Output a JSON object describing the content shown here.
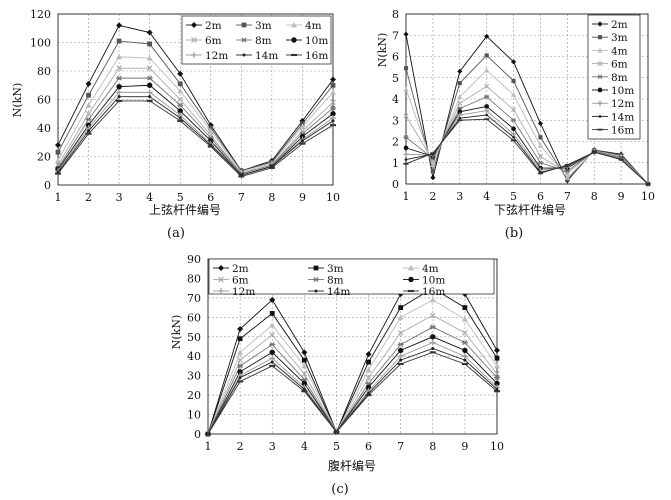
{
  "chart_data": [
    {
      "type": "line",
      "panel_label": "(a)",
      "xlabel": "上弦杆件编号",
      "ylabel": "N(kN)",
      "x": [
        1,
        2,
        3,
        4,
        5,
        6,
        7,
        8,
        9,
        10
      ],
      "xlim": [
        1,
        10
      ],
      "ylim": [
        0,
        120
      ],
      "yticks": [
        0,
        20,
        40,
        60,
        80,
        100,
        120
      ],
      "grid": true,
      "legend_position": "top-right",
      "legend_columns": 3,
      "series": [
        {
          "name": "2m",
          "marker": "diamond",
          "color": "#111111",
          "values": [
            28,
            71,
            112,
            107,
            78,
            42,
            10,
            17,
            45,
            74
          ]
        },
        {
          "name": "3m",
          "marker": "square",
          "color": "#555555",
          "values": [
            23,
            63,
            101,
            99,
            71,
            40,
            10,
            16,
            43,
            70
          ]
        },
        {
          "name": "4m",
          "marker": "triangle",
          "color": "#bbbbbb",
          "values": [
            17,
            56,
            90,
            89,
            66,
            38,
            9,
            15,
            41,
            65
          ]
        },
        {
          "name": "6m",
          "marker": "x",
          "color": "#aaaaaa",
          "values": [
            14,
            50,
            82,
            82,
            60,
            35,
            8,
            14,
            38,
            58
          ]
        },
        {
          "name": "8m",
          "marker": "star",
          "color": "#777777",
          "values": [
            12,
            46,
            75,
            75,
            56,
            33,
            8,
            14,
            36,
            54
          ]
        },
        {
          "name": "10m",
          "marker": "circle",
          "color": "#111111",
          "values": [
            11,
            42,
            69,
            70,
            52,
            31,
            7,
            13,
            34,
            50
          ]
        },
        {
          "name": "12m",
          "marker": "plus",
          "color": "#999999",
          "values": [
            10,
            40,
            65,
            65,
            49,
            29,
            7,
            13,
            32,
            47
          ]
        },
        {
          "name": "14m",
          "marker": "dot",
          "color": "#222222",
          "values": [
            9,
            38,
            62,
            62,
            47,
            28,
            7,
            13,
            31,
            45
          ]
        },
        {
          "name": "16m",
          "marker": "dash",
          "color": "#333333",
          "values": [
            8,
            36,
            59,
            59,
            45,
            27,
            6,
            12,
            29,
            42
          ]
        }
      ]
    },
    {
      "type": "line",
      "panel_label": "(b)",
      "xlabel": "下弦杆件编号",
      "ylabel": "N(kN)",
      "x": [
        1,
        2,
        3,
        4,
        5,
        6,
        7,
        8,
        9,
        10
      ],
      "xlim": [
        1,
        10
      ],
      "ylim": [
        0,
        8
      ],
      "yticks": [
        0,
        1,
        2,
        3,
        4,
        5,
        6,
        7,
        8
      ],
      "grid": true,
      "legend_position": "top-right",
      "legend_columns": 1,
      "series": [
        {
          "name": "2m",
          "marker": "diamond",
          "color": "#111111",
          "values": [
            7.05,
            0.3,
            5.3,
            6.95,
            5.75,
            2.85,
            0.15,
            1.6,
            1.4,
            0.0
          ]
        },
        {
          "name": "3m",
          "marker": "square",
          "color": "#555555",
          "values": [
            5.45,
            0.6,
            4.75,
            6.05,
            4.85,
            2.2,
            0.2,
            1.6,
            1.35,
            0.0
          ]
        },
        {
          "name": "4m",
          "marker": "triangle",
          "color": "#bbbbbb",
          "values": [
            4.45,
            0.9,
            4.1,
            5.35,
            4.2,
            1.8,
            0.3,
            1.55,
            1.3,
            0.0
          ]
        },
        {
          "name": "6m",
          "marker": "x",
          "color": "#aaaaaa",
          "values": [
            3.2,
            1.1,
            3.8,
            4.6,
            3.5,
            1.3,
            0.5,
            1.55,
            1.25,
            0.0
          ]
        },
        {
          "name": "8m",
          "marker": "star",
          "color": "#777777",
          "values": [
            2.2,
            1.2,
            3.55,
            4.1,
            3.0,
            1.0,
            0.6,
            1.55,
            1.25,
            0.0
          ]
        },
        {
          "name": "10m",
          "marker": "circle",
          "color": "#111111",
          "values": [
            1.7,
            1.3,
            3.4,
            3.65,
            2.6,
            0.75,
            0.75,
            1.5,
            1.2,
            0.0
          ]
        },
        {
          "name": "12m",
          "marker": "plus",
          "color": "#999999",
          "values": [
            1.4,
            1.35,
            3.25,
            3.45,
            2.35,
            0.65,
            0.8,
            1.5,
            1.2,
            0.0
          ]
        },
        {
          "name": "14m",
          "marker": "dot",
          "color": "#222222",
          "values": [
            1.15,
            1.4,
            3.1,
            3.25,
            2.2,
            0.55,
            0.85,
            1.5,
            1.15,
            0.0
          ]
        },
        {
          "name": "16m",
          "marker": "dash",
          "color": "#333333",
          "values": [
            0.95,
            1.45,
            3.0,
            3.05,
            2.05,
            0.5,
            0.9,
            1.5,
            1.15,
            0.0
          ]
        }
      ]
    },
    {
      "type": "line",
      "panel_label": "(c)",
      "xlabel": "腹杆编号",
      "ylabel": "N(kN)",
      "x": [
        1,
        2,
        3,
        4,
        5,
        6,
        7,
        8,
        9,
        10
      ],
      "xlim": [
        1,
        10
      ],
      "ylim": [
        0,
        90
      ],
      "yticks": [
        0,
        10,
        20,
        30,
        40,
        50,
        60,
        70,
        80,
        90
      ],
      "grid": true,
      "legend_position": "top",
      "legend_columns": 3,
      "series": [
        {
          "name": "2m",
          "marker": "diamond",
          "color": "#111111",
          "values": [
            0,
            54,
            69,
            42,
            1,
            41,
            72,
            83,
            72,
            43
          ]
        },
        {
          "name": "3m",
          "marker": "square",
          "color": "#111111",
          "values": [
            0,
            49,
            62,
            38,
            1,
            37,
            65,
            75,
            65,
            39
          ]
        },
        {
          "name": "4m",
          "marker": "triangle",
          "color": "#bbbbbb",
          "values": [
            0,
            42,
            56,
            35,
            1,
            33,
            60,
            69,
            59,
            35
          ]
        },
        {
          "name": "6m",
          "marker": "x",
          "color": "#aaaaaa",
          "values": [
            0,
            38,
            51,
            31,
            1,
            29,
            52,
            61,
            52,
            31
          ]
        },
        {
          "name": "8m",
          "marker": "star",
          "color": "#777777",
          "values": [
            0,
            35,
            46,
            28,
            1,
            26,
            46,
            55,
            47,
            29
          ]
        },
        {
          "name": "10m",
          "marker": "circle",
          "color": "#111111",
          "values": [
            0,
            32,
            42,
            26,
            1,
            24,
            43,
            50,
            43,
            26
          ]
        },
        {
          "name": "12m",
          "marker": "plus",
          "color": "#999999",
          "values": [
            0,
            30,
            39,
            24,
            1,
            22,
            40,
            47,
            40,
            24
          ]
        },
        {
          "name": "14m",
          "marker": "dot",
          "color": "#222222",
          "values": [
            0,
            29,
            37,
            23,
            1,
            21,
            38,
            44,
            38,
            23
          ]
        },
        {
          "name": "16m",
          "marker": "dash",
          "color": "#333333",
          "values": [
            0,
            27,
            35,
            22,
            1,
            20,
            36,
            42,
            36,
            22
          ]
        }
      ]
    }
  ]
}
